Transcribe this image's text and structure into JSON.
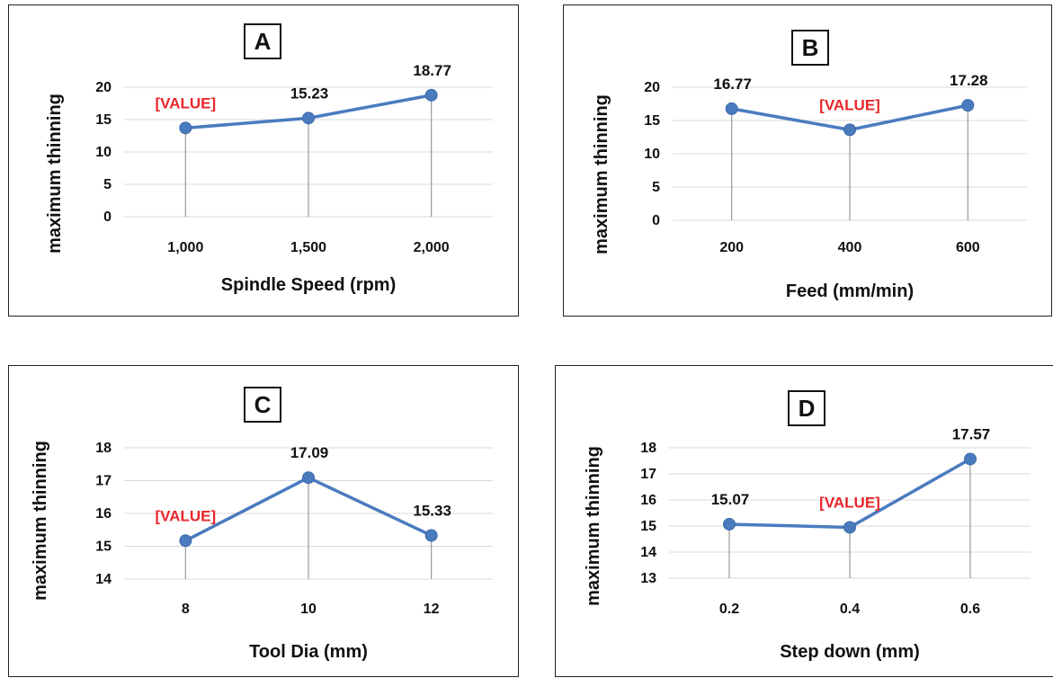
{
  "colors": {
    "line": "#4a7bbf",
    "grid": "#d9d9d9",
    "drop": "#9a9a9a",
    "highlight": "#e8262a"
  },
  "chart_data": [
    {
      "type": "line",
      "panel": "A",
      "categories": [
        "1,000",
        "1,500",
        "2,000"
      ],
      "values": [
        13.7,
        15.23,
        18.77
      ],
      "data_labels": [
        "[VALUE]",
        "15.23",
        "18.77"
      ],
      "xlabel": "Spindle Speed (rpm)",
      "ylabel": "maximum thinning",
      "ylim": [
        0,
        20
      ],
      "yticks": [
        "0",
        "5",
        "10",
        "15",
        "20"
      ],
      "grid": true
    },
    {
      "type": "line",
      "panel": "B",
      "categories": [
        "200",
        "400",
        "600"
      ],
      "values": [
        16.77,
        13.6,
        17.28
      ],
      "data_labels": [
        "16.77",
        "[VALUE]",
        "17.28"
      ],
      "xlabel": "Feed (mm/min)",
      "ylabel": "maximum thinning",
      "ylim": [
        0,
        20
      ],
      "yticks": [
        "0",
        "5",
        "10",
        "15",
        "20"
      ],
      "grid": true
    },
    {
      "type": "line",
      "panel": "C",
      "categories": [
        "8",
        "10",
        "12"
      ],
      "values": [
        15.17,
        17.09,
        15.33
      ],
      "data_labels": [
        "[VALUE]",
        "17.09",
        "15.33"
      ],
      "xlabel": "Tool Dia (mm)",
      "ylabel": "maximum thinning",
      "ylim": [
        14,
        18
      ],
      "yticks": [
        "14",
        "15",
        "16",
        "17",
        "18"
      ],
      "grid": true
    },
    {
      "type": "line",
      "panel": "D",
      "categories": [
        "0.2",
        "0.4",
        "0.6"
      ],
      "values": [
        15.07,
        14.95,
        17.57
      ],
      "data_labels": [
        "15.07",
        "[VALUE]",
        "17.57"
      ],
      "xlabel": "Step down  (mm)",
      "ylabel": "maximum thinning",
      "ylim": [
        13,
        18
      ],
      "yticks": [
        "13",
        "14",
        "15",
        "16",
        "17",
        "18"
      ],
      "grid": true
    }
  ]
}
